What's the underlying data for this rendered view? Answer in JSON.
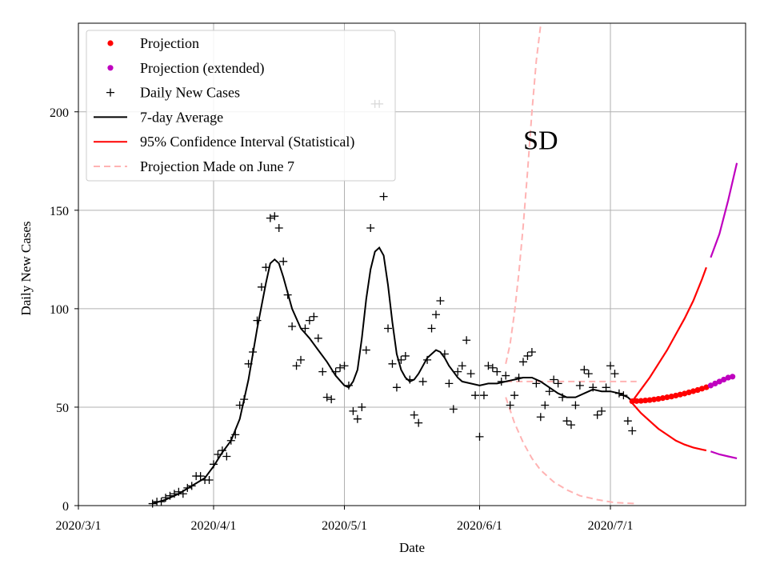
{
  "chart_data": {
    "type": "line",
    "title": "",
    "xlabel": "Date",
    "ylabel": "Daily New Cases",
    "annotation": "SD",
    "grid": true,
    "legend_position": "upper-left",
    "x_domain": [
      "2020-03-01",
      "2020-08-01"
    ],
    "ylim": [
      0,
      245
    ],
    "x_ticks": [
      {
        "date": "2020-03-01",
        "label": "2020/3/1"
      },
      {
        "date": "2020-04-01",
        "label": "2020/4/1"
      },
      {
        "date": "2020-05-01",
        "label": "2020/5/1"
      },
      {
        "date": "2020-06-01",
        "label": "2020/6/1"
      },
      {
        "date": "2020-07-01",
        "label": "2020/7/1"
      }
    ],
    "y_ticks": [
      0,
      50,
      100,
      150,
      200
    ],
    "colors": {
      "projection": "#ff0000",
      "projection_extended": "#bf00bf",
      "daily": "#000000",
      "average": "#000000",
      "ci": "#ff0000",
      "june7": "#ffb3b3",
      "grid": "#b0b0b0"
    },
    "series": [
      {
        "name": "Daily New Cases",
        "kind": "scatter-plus",
        "points": [
          [
            "2020-03-18",
            1
          ],
          [
            "2020-03-19",
            2
          ],
          [
            "2020-03-20",
            2
          ],
          [
            "2020-03-21",
            4
          ],
          [
            "2020-03-22",
            5
          ],
          [
            "2020-03-23",
            6
          ],
          [
            "2020-03-24",
            7
          ],
          [
            "2020-03-25",
            6
          ],
          [
            "2020-03-26",
            9
          ],
          [
            "2020-03-27",
            10
          ],
          [
            "2020-03-28",
            15
          ],
          [
            "2020-03-29",
            15
          ],
          [
            "2020-03-30",
            13
          ],
          [
            "2020-03-31",
            13
          ],
          [
            "2020-04-01",
            21
          ],
          [
            "2020-04-02",
            26
          ],
          [
            "2020-04-03",
            28
          ],
          [
            "2020-04-04",
            25
          ],
          [
            "2020-04-05",
            33
          ],
          [
            "2020-04-06",
            36
          ],
          [
            "2020-04-07",
            51
          ],
          [
            "2020-04-08",
            54
          ],
          [
            "2020-04-09",
            72
          ],
          [
            "2020-04-10",
            78
          ],
          [
            "2020-04-11",
            94
          ],
          [
            "2020-04-12",
            111
          ],
          [
            "2020-04-13",
            121
          ],
          [
            "2020-04-14",
            146
          ],
          [
            "2020-04-15",
            147
          ],
          [
            "2020-04-16",
            141
          ],
          [
            "2020-04-17",
            124
          ],
          [
            "2020-04-18",
            107
          ],
          [
            "2020-04-19",
            91
          ],
          [
            "2020-04-20",
            71
          ],
          [
            "2020-04-21",
            74
          ],
          [
            "2020-04-22",
            90
          ],
          [
            "2020-04-23",
            94
          ],
          [
            "2020-04-24",
            96
          ],
          [
            "2020-04-25",
            85
          ],
          [
            "2020-04-26",
            68
          ],
          [
            "2020-04-27",
            55
          ],
          [
            "2020-04-28",
            54
          ],
          [
            "2020-04-29",
            68
          ],
          [
            "2020-04-30",
            70
          ],
          [
            "2020-05-01",
            71
          ],
          [
            "2020-05-02",
            61
          ],
          [
            "2020-05-03",
            48
          ],
          [
            "2020-05-04",
            44
          ],
          [
            "2020-05-05",
            50
          ],
          [
            "2020-05-06",
            79
          ],
          [
            "2020-05-07",
            141
          ],
          [
            "2020-05-08",
            204
          ],
          [
            "2020-05-09",
            204
          ],
          [
            "2020-05-10",
            157
          ],
          [
            "2020-05-11",
            90
          ],
          [
            "2020-05-12",
            72
          ],
          [
            "2020-05-13",
            60
          ],
          [
            "2020-05-14",
            74
          ],
          [
            "2020-05-15",
            76
          ],
          [
            "2020-05-16",
            64
          ],
          [
            "2020-05-17",
            46
          ],
          [
            "2020-05-18",
            42
          ],
          [
            "2020-05-19",
            63
          ],
          [
            "2020-05-20",
            74
          ],
          [
            "2020-05-21",
            90
          ],
          [
            "2020-05-22",
            97
          ],
          [
            "2020-05-23",
            104
          ],
          [
            "2020-05-24",
            77
          ],
          [
            "2020-05-25",
            62
          ],
          [
            "2020-05-26",
            49
          ],
          [
            "2020-05-27",
            68
          ],
          [
            "2020-05-28",
            71
          ],
          [
            "2020-05-29",
            84
          ],
          [
            "2020-05-30",
            67
          ],
          [
            "2020-05-31",
            56
          ],
          [
            "2020-06-01",
            35
          ],
          [
            "2020-06-02",
            56
          ],
          [
            "2020-06-03",
            71
          ],
          [
            "2020-06-04",
            70
          ],
          [
            "2020-06-05",
            68
          ],
          [
            "2020-06-06",
            63
          ],
          [
            "2020-06-07",
            66
          ],
          [
            "2020-06-08",
            51
          ],
          [
            "2020-06-09",
            56
          ],
          [
            "2020-06-10",
            65
          ],
          [
            "2020-06-11",
            73
          ],
          [
            "2020-06-12",
            76
          ],
          [
            "2020-06-13",
            78
          ],
          [
            "2020-06-14",
            62
          ],
          [
            "2020-06-15",
            45
          ],
          [
            "2020-06-16",
            51
          ],
          [
            "2020-06-17",
            58
          ],
          [
            "2020-06-18",
            64
          ],
          [
            "2020-06-19",
            62
          ],
          [
            "2020-06-20",
            55
          ],
          [
            "2020-06-21",
            43
          ],
          [
            "2020-06-22",
            41
          ],
          [
            "2020-06-23",
            51
          ],
          [
            "2020-06-24",
            61
          ],
          [
            "2020-06-25",
            69
          ],
          [
            "2020-06-26",
            67
          ],
          [
            "2020-06-27",
            60
          ],
          [
            "2020-06-28",
            46
          ],
          [
            "2020-06-29",
            48
          ],
          [
            "2020-06-30",
            60
          ],
          [
            "2020-07-01",
            71
          ],
          [
            "2020-07-02",
            67
          ],
          [
            "2020-07-03",
            57
          ],
          [
            "2020-07-04",
            56
          ],
          [
            "2020-07-05",
            43
          ],
          [
            "2020-07-06",
            38
          ]
        ]
      },
      {
        "name": "7-day Average",
        "kind": "line",
        "points": [
          [
            "2020-03-18",
            1
          ],
          [
            "2020-03-21",
            3
          ],
          [
            "2020-03-24",
            6
          ],
          [
            "2020-03-27",
            10
          ],
          [
            "2020-03-30",
            14
          ],
          [
            "2020-04-01",
            20
          ],
          [
            "2020-04-03",
            27
          ],
          [
            "2020-04-05",
            33
          ],
          [
            "2020-04-07",
            44
          ],
          [
            "2020-04-09",
            64
          ],
          [
            "2020-04-11",
            90
          ],
          [
            "2020-04-13",
            113
          ],
          [
            "2020-04-14",
            123
          ],
          [
            "2020-04-15",
            125
          ],
          [
            "2020-04-16",
            123
          ],
          [
            "2020-04-17",
            116
          ],
          [
            "2020-04-19",
            100
          ],
          [
            "2020-04-21",
            90
          ],
          [
            "2020-04-23",
            85
          ],
          [
            "2020-04-25",
            79
          ],
          [
            "2020-04-27",
            73
          ],
          [
            "2020-04-29",
            66
          ],
          [
            "2020-05-01",
            61
          ],
          [
            "2020-05-02",
            60
          ],
          [
            "2020-05-03",
            63
          ],
          [
            "2020-05-04",
            69
          ],
          [
            "2020-05-05",
            85
          ],
          [
            "2020-05-06",
            105
          ],
          [
            "2020-05-07",
            120
          ],
          [
            "2020-05-08",
            129
          ],
          [
            "2020-05-09",
            131
          ],
          [
            "2020-05-10",
            127
          ],
          [
            "2020-05-11",
            112
          ],
          [
            "2020-05-12",
            93
          ],
          [
            "2020-05-13",
            77
          ],
          [
            "2020-05-14",
            69
          ],
          [
            "2020-05-15",
            65
          ],
          [
            "2020-05-16",
            63
          ],
          [
            "2020-05-17",
            64
          ],
          [
            "2020-05-18",
            67
          ],
          [
            "2020-05-19",
            71
          ],
          [
            "2020-05-20",
            75
          ],
          [
            "2020-05-21",
            77
          ],
          [
            "2020-05-22",
            79
          ],
          [
            "2020-05-23",
            78
          ],
          [
            "2020-05-24",
            75
          ],
          [
            "2020-05-25",
            71
          ],
          [
            "2020-05-26",
            68
          ],
          [
            "2020-05-27",
            65
          ],
          [
            "2020-05-28",
            63
          ],
          [
            "2020-05-30",
            62
          ],
          [
            "2020-06-01",
            61
          ],
          [
            "2020-06-03",
            62
          ],
          [
            "2020-06-05",
            62
          ],
          [
            "2020-06-07",
            63
          ],
          [
            "2020-06-09",
            64
          ],
          [
            "2020-06-11",
            65
          ],
          [
            "2020-06-13",
            65
          ],
          [
            "2020-06-15",
            63
          ],
          [
            "2020-06-17",
            60
          ],
          [
            "2020-06-19",
            57
          ],
          [
            "2020-06-21",
            55
          ],
          [
            "2020-06-23",
            55
          ],
          [
            "2020-06-25",
            57
          ],
          [
            "2020-06-27",
            59
          ],
          [
            "2020-06-29",
            58
          ],
          [
            "2020-07-01",
            58
          ],
          [
            "2020-07-03",
            57
          ],
          [
            "2020-07-05",
            55
          ],
          [
            "2020-07-06",
            53
          ]
        ]
      },
      {
        "name": "Projection",
        "kind": "dots",
        "points": [
          [
            "2020-07-06",
            53
          ],
          [
            "2020-07-07",
            53.1
          ],
          [
            "2020-07-08",
            53.2
          ],
          [
            "2020-07-09",
            53.4
          ],
          [
            "2020-07-10",
            53.6
          ],
          [
            "2020-07-11",
            53.9
          ],
          [
            "2020-07-12",
            54.2
          ],
          [
            "2020-07-13",
            54.6
          ],
          [
            "2020-07-14",
            55
          ],
          [
            "2020-07-15",
            55.4
          ],
          [
            "2020-07-16",
            55.9
          ],
          [
            "2020-07-17",
            56.4
          ],
          [
            "2020-07-18",
            56.9
          ],
          [
            "2020-07-19",
            57.5
          ],
          [
            "2020-07-20",
            58.1
          ],
          [
            "2020-07-21",
            58.7
          ],
          [
            "2020-07-22",
            59.4
          ],
          [
            "2020-07-23",
            60.1
          ]
        ]
      },
      {
        "name": "Projection (extended)",
        "kind": "dots",
        "points": [
          [
            "2020-07-24",
            61
          ],
          [
            "2020-07-25",
            62
          ],
          [
            "2020-07-26",
            63
          ],
          [
            "2020-07-27",
            64
          ],
          [
            "2020-07-28",
            65
          ],
          [
            "2020-07-29",
            65.5
          ]
        ]
      },
      {
        "name": "95% Confidence Interval (Statistical)",
        "kind": "band",
        "upper": [
          [
            "2020-07-06",
            53
          ],
          [
            "2020-07-08",
            59
          ],
          [
            "2020-07-10",
            65
          ],
          [
            "2020-07-12",
            72
          ],
          [
            "2020-07-14",
            79
          ],
          [
            "2020-07-16",
            87
          ],
          [
            "2020-07-18",
            95
          ],
          [
            "2020-07-20",
            104
          ],
          [
            "2020-07-22",
            115
          ],
          [
            "2020-07-23",
            121
          ]
        ],
        "lower": [
          [
            "2020-07-06",
            52
          ],
          [
            "2020-07-08",
            47
          ],
          [
            "2020-07-10",
            43
          ],
          [
            "2020-07-12",
            39
          ],
          [
            "2020-07-14",
            36
          ],
          [
            "2020-07-16",
            33
          ],
          [
            "2020-07-18",
            31
          ],
          [
            "2020-07-20",
            29.5
          ],
          [
            "2020-07-22",
            28.5
          ],
          [
            "2020-07-23",
            28
          ]
        ]
      },
      {
        "name": "95% Confidence Interval (extended)",
        "kind": "band",
        "upper": [
          [
            "2020-07-24",
            126
          ],
          [
            "2020-07-26",
            138
          ],
          [
            "2020-07-28",
            155
          ],
          [
            "2020-07-30",
            174
          ]
        ],
        "lower": [
          [
            "2020-07-24",
            27.5
          ],
          [
            "2020-07-26",
            26
          ],
          [
            "2020-07-28",
            25
          ],
          [
            "2020-07-30",
            24
          ]
        ]
      },
      {
        "name": "Projection Made on June 7",
        "kind": "dashed-band",
        "upper": [
          [
            "2020-06-07",
            72
          ],
          [
            "2020-06-08",
            82
          ],
          [
            "2020-06-09",
            98
          ],
          [
            "2020-06-10",
            118
          ],
          [
            "2020-06-11",
            142
          ],
          [
            "2020-06-12",
            170
          ],
          [
            "2020-06-13",
            200
          ],
          [
            "2020-06-14",
            226
          ],
          [
            "2020-06-15",
            244
          ]
        ],
        "middle": [
          [
            "2020-06-07",
            63
          ],
          [
            "2020-06-12",
            63
          ],
          [
            "2020-06-17",
            63
          ],
          [
            "2020-06-22",
            63
          ],
          [
            "2020-06-27",
            63
          ],
          [
            "2020-07-02",
            63
          ],
          [
            "2020-07-07",
            63
          ]
        ],
        "lower": [
          [
            "2020-06-07",
            55
          ],
          [
            "2020-06-09",
            42
          ],
          [
            "2020-06-11",
            32
          ],
          [
            "2020-06-13",
            24
          ],
          [
            "2020-06-15",
            18
          ],
          [
            "2020-06-18",
            12
          ],
          [
            "2020-06-21",
            8
          ],
          [
            "2020-06-24",
            5
          ],
          [
            "2020-06-28",
            3
          ],
          [
            "2020-07-02",
            1.5
          ],
          [
            "2020-07-07",
            1
          ]
        ]
      }
    ],
    "legend": [
      {
        "label": "Projection",
        "marker": "dot",
        "color": "#ff0000"
      },
      {
        "label": "Projection (extended)",
        "marker": "dot",
        "color": "#bf00bf"
      },
      {
        "label": "Daily New Cases",
        "marker": "plus",
        "color": "#000000"
      },
      {
        "label": "7-day Average",
        "marker": "line",
        "color": "#000000"
      },
      {
        "label": "95% Confidence Interval (Statistical)",
        "marker": "line",
        "color": "#ff0000"
      },
      {
        "label": "Projection Made on June 7",
        "marker": "dashed",
        "color": "#ffb3b3"
      }
    ]
  }
}
